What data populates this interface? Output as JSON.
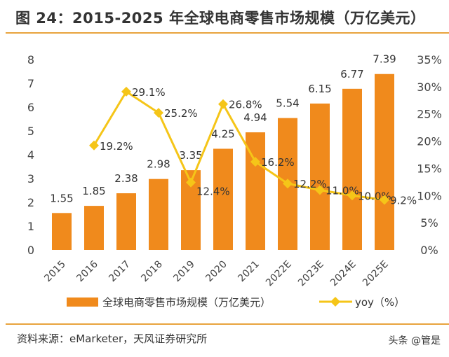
{
  "title": "图 24：2015-2025 年全球电商零售市场规模（万亿美元）",
  "source": "资料来源：eMarketer，天风证券研究所",
  "watermark": "头条 @管是",
  "chart_data": {
    "type": "bar+line",
    "categories": [
      "2015",
      "2016",
      "2017",
      "2018",
      "2019",
      "2020",
      "2021",
      "2022E",
      "2023E",
      "2024E",
      "2025E"
    ],
    "series": [
      {
        "name": "全球电商零售市场规模（万亿美元）",
        "type": "bar",
        "axis": "left",
        "color": "#f08a1c",
        "values": [
          1.55,
          1.85,
          2.38,
          2.98,
          3.35,
          4.25,
          4.94,
          5.54,
          6.15,
          6.77,
          7.39
        ],
        "labels": [
          "1.55",
          "1.85",
          "2.38",
          "2.98",
          "3.35",
          "4.25",
          "4.94",
          "5.54",
          "6.15",
          "6.77",
          "7.39"
        ]
      },
      {
        "name": "yoy（%）",
        "type": "line",
        "axis": "right",
        "color": "#f5c518",
        "values": [
          null,
          19.2,
          29.1,
          25.2,
          12.4,
          26.8,
          16.2,
          12.2,
          11.0,
          10.0,
          9.2
        ],
        "labels": [
          "",
          "19.2%",
          "29.1%",
          "25.2%",
          "12.4%",
          "26.8%",
          "16.2%",
          "12.2%",
          "11.0%",
          "10.0%",
          "9.2%"
        ]
      }
    ],
    "left_axis": {
      "ylim": [
        0,
        8
      ],
      "ticks": [
        "0",
        "1",
        "2",
        "3",
        "4",
        "5",
        "6",
        "7",
        "8"
      ]
    },
    "right_axis": {
      "ylim": [
        0,
        35
      ],
      "ticks": [
        "0%",
        "5%",
        "10%",
        "15%",
        "20%",
        "25%",
        "30%",
        "35%"
      ]
    },
    "grid": false,
    "legend": "bottom"
  }
}
